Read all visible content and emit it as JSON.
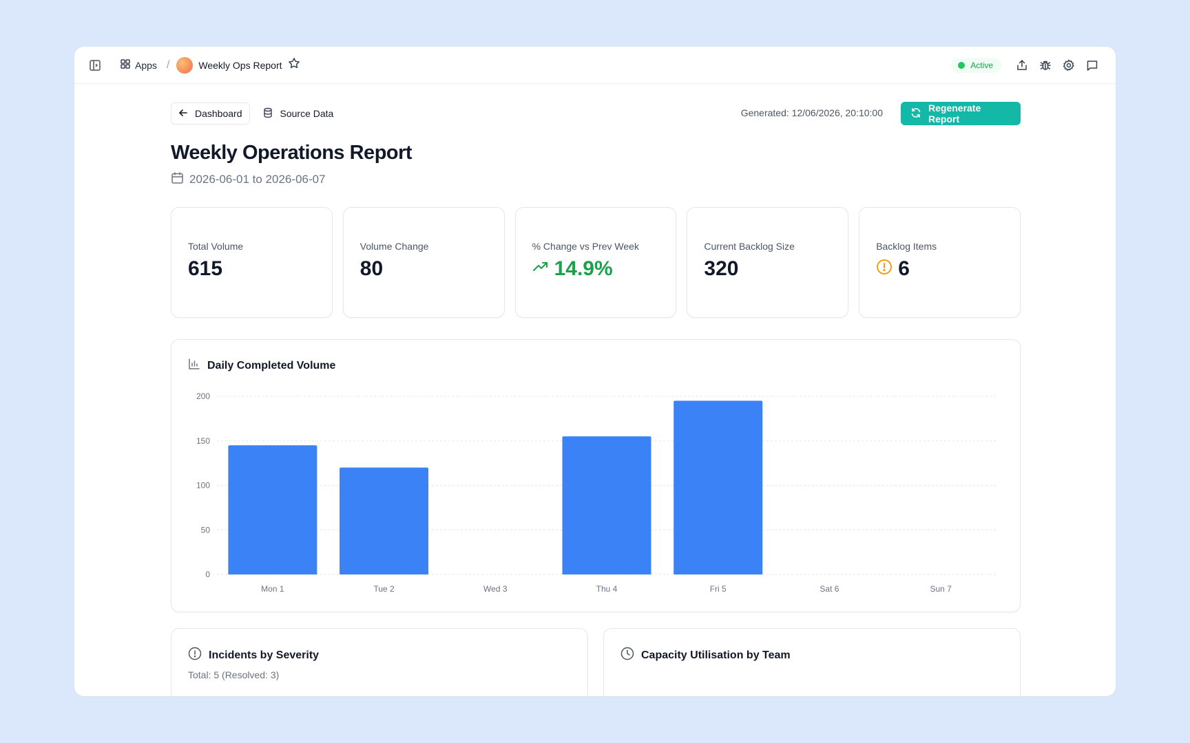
{
  "topbar": {
    "apps_label": "Apps",
    "app_title": "Weekly Ops Report",
    "status": "Active"
  },
  "actions": {
    "dashboard_label": "Dashboard",
    "source_data_label": "Source Data",
    "generated": "Generated: 12/06/2026, 20:10:00",
    "regenerate_label": "Regenerate Report"
  },
  "report": {
    "title": "Weekly Operations Report",
    "date_range": "2026-06-01 to 2026-06-07"
  },
  "kpis": [
    {
      "label": "Total Volume",
      "value": "615"
    },
    {
      "label": "Volume Change",
      "value": "80"
    },
    {
      "label": "% Change vs Prev Week",
      "value": "14.9%"
    },
    {
      "label": "Current Backlog Size",
      "value": "320"
    },
    {
      "label": "Backlog Items",
      "value": "6"
    }
  ],
  "colors": {
    "accent": "#14b8a6",
    "bar": "#3b82f6",
    "positive": "#16a34a",
    "warning": "#f59e0b"
  },
  "chart_data": {
    "type": "bar",
    "title": "Daily Completed Volume",
    "categories": [
      "Mon 1",
      "Tue 2",
      "Wed 3",
      "Thu 4",
      "Fri 5",
      "Sat 6",
      "Sun 7"
    ],
    "values": [
      145,
      120,
      0,
      155,
      195,
      0,
      0
    ],
    "yticks": [
      0,
      50,
      100,
      150,
      200
    ],
    "ylim": [
      0,
      200
    ],
    "grid": true
  },
  "bottom": {
    "incidents_title": "Incidents by Severity",
    "incidents_sub": "Total: 5 (Resolved: 3)",
    "capacity_title": "Capacity Utilisation by Team"
  }
}
